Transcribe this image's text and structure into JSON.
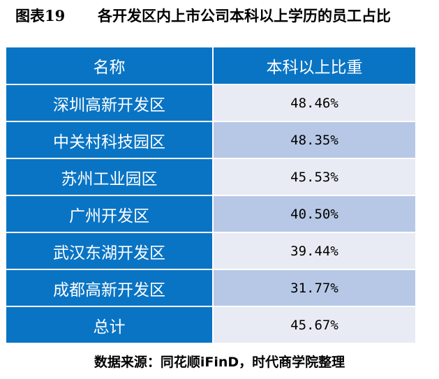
{
  "caption": {
    "number": "图表19",
    "title": "各开发区内上市公司本科以上学历的员工占比"
  },
  "table": {
    "header": {
      "name": "名称",
      "value": "本科以上比重"
    },
    "rows": [
      {
        "name": "深圳高新开发区",
        "value": "48.46%"
      },
      {
        "name": "中关村科技园区",
        "value": "48.35%"
      },
      {
        "name": "苏州工业园区",
        "value": "45.53%"
      },
      {
        "name": "广州开发区",
        "value": "40.50%"
      },
      {
        "name": "武汉东湖开发区",
        "value": "39.44%"
      },
      {
        "name": "成都高新开发区",
        "value": "31.77%"
      },
      {
        "name": "总计",
        "value": "45.67%"
      }
    ]
  },
  "source": "数据来源：同花顺iFinD，时代商学院整理",
  "colors": {
    "header_bg": "#0a74c4",
    "row_light": "#e8ebf3",
    "row_dark": "#b7c8e6"
  }
}
